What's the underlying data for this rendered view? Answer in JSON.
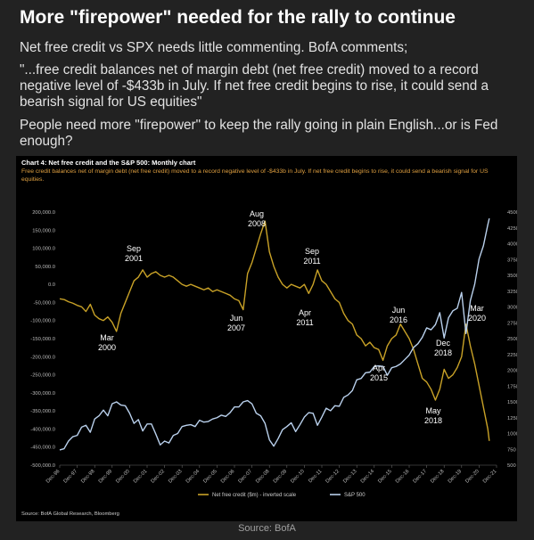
{
  "post": {
    "title": "More \"firepower\" needed for the rally to continue",
    "paragraphs": [
      "Net free credit vs SPX needs little commenting. BofA comments;",
      "\"...free credit balances net of margin debt (net free credit) moved to a record negative level of -$433b in July. If net free credit begins to rise, it could send a bearish signal for US equities\"",
      "People need more \"firepower\" to keep the rally going in plain English...or is Fed enough?"
    ],
    "footer": "Source: BofA"
  },
  "chart_data": {
    "type": "line",
    "title": "Chart 4: Net free credit and the S&P 500: Monthly chart",
    "subtitle": "Free credit balances net of margin debt (net free credit) moved to a record negative level of -$433b in July. If net free credit begins to rise, it could send a bearish signal for US equities.",
    "source": "Source: BofA Global Research, Bloomberg",
    "grid": false,
    "x": [
      "1996-12",
      "1997-03",
      "1997-06",
      "1997-09",
      "1997-12",
      "1998-03",
      "1998-06",
      "1998-09",
      "1998-12",
      "1999-03",
      "1999-06",
      "1999-09",
      "1999-12",
      "2000-03",
      "2000-06",
      "2000-09",
      "2000-12",
      "2001-03",
      "2001-06",
      "2001-09",
      "2001-12",
      "2002-03",
      "2002-06",
      "2002-09",
      "2002-12",
      "2003-03",
      "2003-06",
      "2003-09",
      "2003-12",
      "2004-03",
      "2004-06",
      "2004-09",
      "2004-12",
      "2005-03",
      "2005-06",
      "2005-09",
      "2005-12",
      "2006-03",
      "2006-06",
      "2006-09",
      "2006-12",
      "2007-03",
      "2007-06",
      "2007-09",
      "2007-12",
      "2008-03",
      "2008-06",
      "2008-09",
      "2008-12",
      "2009-03",
      "2009-06",
      "2009-09",
      "2009-12",
      "2010-03",
      "2010-06",
      "2010-09",
      "2010-12",
      "2011-03",
      "2011-06",
      "2011-09",
      "2011-12",
      "2012-03",
      "2012-06",
      "2012-09",
      "2012-12",
      "2013-03",
      "2013-06",
      "2013-09",
      "2013-12",
      "2014-03",
      "2014-06",
      "2014-09",
      "2014-12",
      "2015-03",
      "2015-06",
      "2015-09",
      "2015-12",
      "2016-03",
      "2016-06",
      "2016-09",
      "2016-12",
      "2017-03",
      "2017-06",
      "2017-09",
      "2017-12",
      "2018-03",
      "2018-06",
      "2018-09",
      "2018-12",
      "2019-03",
      "2019-06",
      "2019-09",
      "2019-12",
      "2020-03",
      "2020-06",
      "2020-09",
      "2020-12",
      "2021-03",
      "2021-06",
      "2021-07"
    ],
    "xlim": [
      "1996-12",
      "2021-12"
    ],
    "xticks": [
      {
        "value": "1996-12",
        "label": "Dec-96"
      },
      {
        "value": "1997-12",
        "label": "Dec-97"
      },
      {
        "value": "1998-12",
        "label": "Dec-98"
      },
      {
        "value": "1999-12",
        "label": "Dec-99"
      },
      {
        "value": "2000-12",
        "label": "Dec-00"
      },
      {
        "value": "2001-12",
        "label": "Dec-01"
      },
      {
        "value": "2002-12",
        "label": "Dec-02"
      },
      {
        "value": "2003-12",
        "label": "Dec-03"
      },
      {
        "value": "2004-12",
        "label": "Dec-04"
      },
      {
        "value": "2005-12",
        "label": "Dec-05"
      },
      {
        "value": "2006-12",
        "label": "Dec-06"
      },
      {
        "value": "2007-12",
        "label": "Dec-07"
      },
      {
        "value": "2008-12",
        "label": "Dec-08"
      },
      {
        "value": "2009-12",
        "label": "Dec-09"
      },
      {
        "value": "2010-12",
        "label": "Dec-10"
      },
      {
        "value": "2011-12",
        "label": "Dec-11"
      },
      {
        "value": "2012-12",
        "label": "Dec-12"
      },
      {
        "value": "2013-12",
        "label": "Dec-13"
      },
      {
        "value": "2014-12",
        "label": "Dec-14"
      },
      {
        "value": "2015-12",
        "label": "Dec-15"
      },
      {
        "value": "2016-12",
        "label": "Dec-16"
      },
      {
        "value": "2017-12",
        "label": "Dec-17"
      },
      {
        "value": "2018-12",
        "label": "Dec-18"
      },
      {
        "value": "2019-12",
        "label": "Dec-19"
      },
      {
        "value": "2020-12",
        "label": "Dec-20"
      },
      {
        "value": "2021-12",
        "label": "Dec-21"
      }
    ],
    "ylim": [
      -500000,
      200000
    ],
    "yticks": [
      {
        "value": -500000,
        "label": "-500,000.0"
      },
      {
        "value": -450000,
        "label": "-450,000.0"
      },
      {
        "value": -400000,
        "label": "-400,000.0"
      },
      {
        "value": -350000,
        "label": "-350,000.0"
      },
      {
        "value": -300000,
        "label": "-300,000.0"
      },
      {
        "value": -250000,
        "label": "-250,000.0"
      },
      {
        "value": -200000,
        "label": "-200,000.0"
      },
      {
        "value": -150000,
        "label": "-150,000.0"
      },
      {
        "value": -100000,
        "label": "-100,000.0"
      },
      {
        "value": -50000,
        "label": "-50,000.0"
      },
      {
        "value": 0,
        "label": "0.0"
      },
      {
        "value": 50000,
        "label": "50,000.0"
      },
      {
        "value": 100000,
        "label": "100,000.0"
      },
      {
        "value": 150000,
        "label": "150,000.0"
      },
      {
        "value": 200000,
        "label": "200,000.0"
      }
    ],
    "y2lim": [
      500,
      4500
    ],
    "y2ticks": [
      500,
      750,
      1000,
      1250,
      1500,
      1750,
      2000,
      2250,
      2500,
      2750,
      3000,
      3250,
      3500,
      3750,
      4000,
      4250,
      4500
    ],
    "series": [
      {
        "name": "Net free credit ($m) - inverted scale",
        "color": "#c9a227",
        "values": [
          -40000,
          -42000,
          -48000,
          -52000,
          -58000,
          -62000,
          -75000,
          -55000,
          -85000,
          -95000,
          -100000,
          -90000,
          -105000,
          -130000,
          -80000,
          -50000,
          -20000,
          10000,
          20000,
          40000,
          20000,
          30000,
          35000,
          25000,
          20000,
          25000,
          20000,
          10000,
          0,
          -5000,
          0,
          -5000,
          -10000,
          -15000,
          -10000,
          -20000,
          -15000,
          -20000,
          -25000,
          -30000,
          -40000,
          -45000,
          -70000,
          30000,
          60000,
          100000,
          140000,
          175000,
          90000,
          50000,
          20000,
          0,
          -10000,
          0,
          -5000,
          -10000,
          0,
          -25000,
          0,
          40000,
          10000,
          0,
          -20000,
          -40000,
          -50000,
          -80000,
          -100000,
          -110000,
          -140000,
          -150000,
          -170000,
          -160000,
          -175000,
          -180000,
          -210000,
          -170000,
          -150000,
          -140000,
          -110000,
          -130000,
          -150000,
          -180000,
          -220000,
          -260000,
          -270000,
          -290000,
          -320000,
          -290000,
          -235000,
          -260000,
          -250000,
          -230000,
          -200000,
          -110000,
          -170000,
          -220000,
          -280000,
          -340000,
          -400000,
          -433000
        ]
      },
      {
        "name": "S&P 500",
        "color": "#b9d0ec",
        "axis": "y2",
        "values": [
          740,
          760,
          880,
          950,
          970,
          1100,
          1130,
          1020,
          1230,
          1280,
          1370,
          1280,
          1470,
          1500,
          1450,
          1440,
          1320,
          1160,
          1220,
          1040,
          1150,
          1150,
          990,
          820,
          880,
          850,
          970,
          1000,
          1110,
          1130,
          1140,
          1110,
          1210,
          1180,
          1190,
          1230,
          1250,
          1290,
          1270,
          1330,
          1420,
          1420,
          1500,
          1520,
          1470,
          1320,
          1280,
          1160,
          900,
          800,
          920,
          1060,
          1110,
          1170,
          1030,
          1140,
          1260,
          1330,
          1320,
          1130,
          1260,
          1400,
          1360,
          1440,
          1430,
          1570,
          1610,
          1680,
          1850,
          1870,
          1960,
          1970,
          2060,
          2070,
          2060,
          1920,
          2040,
          2060,
          2100,
          2170,
          2240,
          2360,
          2420,
          2520,
          2670,
          2640,
          2720,
          2910,
          2510,
          2830,
          2940,
          2980,
          3230,
          2580,
          3100,
          3360,
          3760,
          3970,
          4300,
          4400
        ]
      }
    ],
    "annotations": [
      "Sep 2001",
      "Aug 2008",
      "Sep 2011",
      "Jun 2007",
      "Mar 2000",
      "Apr 2011",
      "Jun 2016",
      "Apr 2015",
      "Dec 2018",
      "May 2018",
      "Mar 2020"
    ]
  }
}
